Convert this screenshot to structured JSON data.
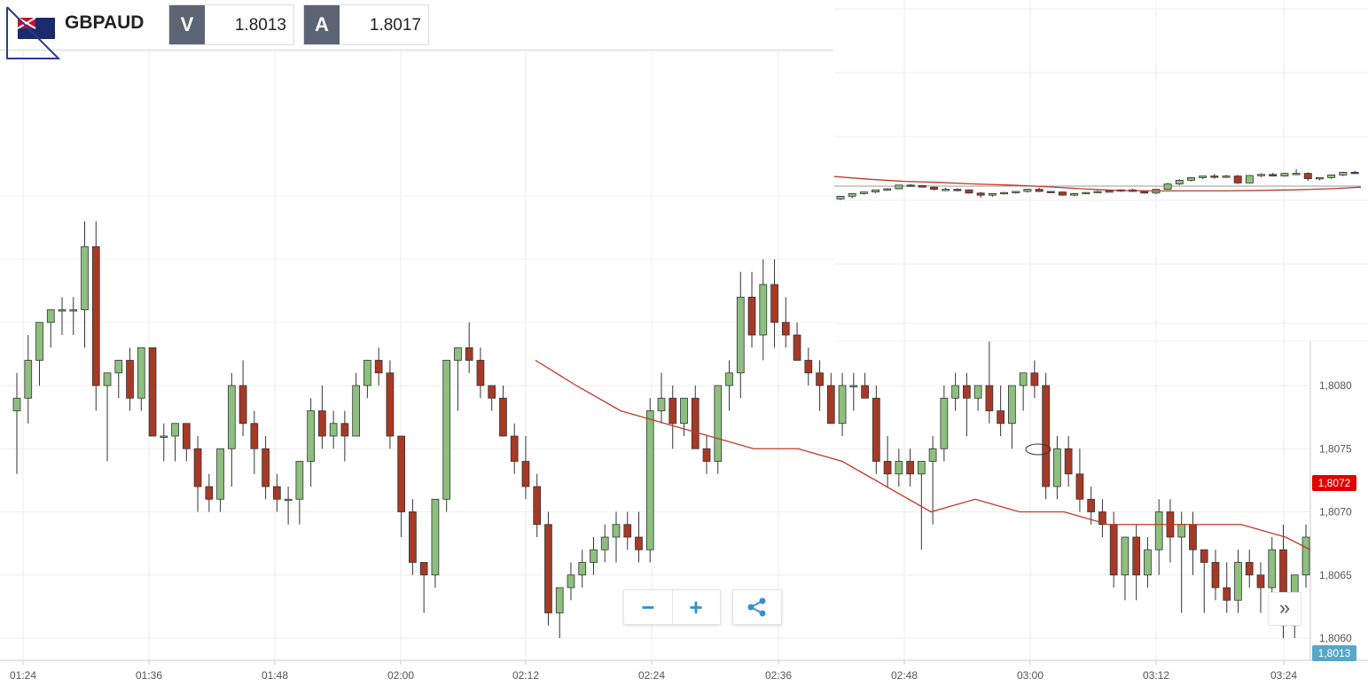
{
  "toolbar": {
    "symbol": "GBPAUD",
    "bid_label": "V",
    "bid_value": "1.8013",
    "ask_label": "A",
    "ask_value": "1.8017",
    "flag_icon": "gb-au-flag-icon"
  },
  "controls": {
    "zoom_out_icon": "minus-icon",
    "zoom_in_icon": "plus-icon",
    "share_icon": "share-icon",
    "expand_icon": "double-chevron-right-icon"
  },
  "colors": {
    "up": "#8dbf7e",
    "down": "#a63a26",
    "ma": "#c0392b",
    "current_price_tag": "#e00000",
    "bid_price_tag": "#56a7c8"
  },
  "chart_data": [
    {
      "type": "candlestick",
      "panel": "main",
      "x_tick_labels": [
        "01:24",
        "01:36",
        "01:48",
        "02:00",
        "02:12",
        "02:24",
        "02:36",
        "02:48",
        "03:00",
        "03:12",
        "03:24"
      ],
      "y_tick_labels": [
        "1,8060",
        "1,8065",
        "1,8070",
        "1,8075",
        "1,8080"
      ],
      "ylim": [
        1.8059,
        1.8084
      ],
      "grid": true,
      "price_tags": [
        {
          "label": "1,8072",
          "value": 1.8072,
          "color": "current"
        },
        {
          "label": "1,8013",
          "value": 1.806,
          "color": "bid"
        }
      ],
      "candles": [
        [
          1.8078,
          1.8081,
          1.8073,
          1.8079
        ],
        [
          1.8079,
          1.8084,
          1.8077,
          1.8082
        ],
        [
          1.8082,
          1.8085,
          1.808,
          1.8083
        ],
        [
          1.8083,
          1.8085,
          1.8081,
          1.8083
        ],
        [
          1.8083,
          1.8084,
          1.8081,
          1.8083
        ],
        [
          1.8083,
          1.8084,
          1.8082,
          1.8083
        ],
        [
          1.8083,
          1.8085,
          1.8081,
          1.8083
        ],
        [
          1.8083,
          1.8087,
          1.8081,
          1.8086
        ],
        [
          1.8086,
          1.8087,
          1.8078,
          1.8079
        ],
        [
          1.8079,
          1.808,
          1.8077,
          1.808
        ],
        [
          1.808,
          1.8081,
          1.8079,
          1.8081
        ],
        [
          1.8081,
          1.8082,
          1.8078,
          1.8079
        ],
        [
          1.8079,
          1.8082,
          1.8078,
          1.8082
        ],
        [
          1.8082,
          1.8083,
          1.8076,
          1.8077
        ],
        [
          1.8077,
          1.8077,
          1.8075,
          1.8076
        ],
        [
          1.8076,
          1.8077,
          1.8075,
          1.8077
        ],
        [
          1.8077,
          1.8077,
          1.8075,
          1.8076
        ]
      ],
      "moving_average": [
        [
          1.8077,
          1.8076,
          1.8075,
          1.8074,
          1.8074,
          1.8073
        ]
      ]
    },
    {
      "type": "candlestick",
      "panel": "inset",
      "ylim": [
        1.8059,
        1.8084
      ],
      "reference_line": 1.8069
    }
  ]
}
